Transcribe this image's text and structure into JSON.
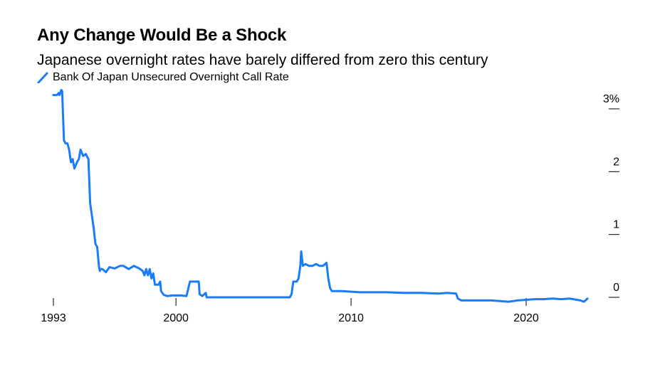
{
  "header": {
    "title": "Any Change Would Be a Shock",
    "subtitle": "Japanese overnight rates have barely differed from zero this century"
  },
  "chart_data": {
    "type": "line",
    "title": "Any Change Would Be a Shock",
    "subtitle": "Japanese overnight rates have barely differed from zero this century",
    "xlabel": "",
    "ylabel": "",
    "xlim": [
      1993,
      2023.7
    ],
    "ylim": [
      0,
      3
    ],
    "y_ticks": [
      0,
      1,
      2,
      3
    ],
    "y_tick_labels": [
      "0",
      "1",
      "2",
      "3%"
    ],
    "x_ticks": [
      1993,
      2000,
      2010,
      2020
    ],
    "x_tick_labels": [
      "1993",
      "2000",
      "2010",
      "2020"
    ],
    "grid": false,
    "legend_position": "top-left",
    "color": "#1a7cf7",
    "series": [
      {
        "name": "Bank Of Japan Unsecured Overnight Call Rate",
        "x": [
          1993.0,
          1993.2,
          1993.3,
          1993.35,
          1993.45,
          1993.5,
          1993.6,
          1993.7,
          1993.8,
          1993.9,
          1994.0,
          1994.1,
          1994.2,
          1994.35,
          1994.45,
          1994.55,
          1994.7,
          1994.85,
          1995.0,
          1995.1,
          1995.2,
          1995.3,
          1995.4,
          1995.5,
          1995.6,
          1995.65,
          1995.7,
          1995.8,
          1996.0,
          1996.2,
          1996.5,
          1996.8,
          1997.0,
          1997.3,
          1997.6,
          1997.9,
          1998.1,
          1998.2,
          1998.3,
          1998.4,
          1998.5,
          1998.6,
          1998.7,
          1998.8,
          1998.9,
          1999.0,
          1999.1,
          1999.15,
          1999.3,
          1999.5,
          1999.8,
          2000.0,
          2000.3,
          2000.6,
          2000.8,
          2000.85,
          2001.0,
          2001.3,
          2001.35,
          2001.5,
          2001.7,
          2001.75,
          2002.5,
          2004.0,
          2005.5,
          2006.5,
          2006.6,
          2006.7,
          2006.8,
          2006.9,
          2007.0,
          2007.1,
          2007.15,
          2007.25,
          2007.4,
          2007.6,
          2007.8,
          2008.0,
          2008.2,
          2008.4,
          2008.6,
          2008.7,
          2008.8,
          2008.9,
          2009.0,
          2009.5,
          2010.0,
          2010.5,
          2011.0,
          2012.0,
          2013.0,
          2014.0,
          2015.0,
          2015.5,
          2016.0,
          2016.1,
          2016.3,
          2016.5,
          2017.0,
          2017.5,
          2018.0,
          2018.5,
          2019.0,
          2019.5,
          2020.0,
          2020.5,
          2021.0,
          2021.5,
          2022.0,
          2022.5,
          2022.9,
          2023.1,
          2023.3,
          2023.5
        ],
        "y": [
          3.22,
          3.22,
          3.25,
          3.22,
          3.3,
          3.28,
          2.5,
          2.45,
          2.45,
          2.35,
          2.15,
          2.2,
          2.05,
          2.15,
          2.2,
          2.35,
          2.25,
          2.28,
          2.2,
          1.5,
          1.3,
          1.1,
          0.85,
          0.8,
          0.5,
          0.42,
          0.45,
          0.45,
          0.4,
          0.48,
          0.46,
          0.5,
          0.5,
          0.45,
          0.5,
          0.46,
          0.42,
          0.35,
          0.45,
          0.35,
          0.45,
          0.3,
          0.38,
          0.2,
          0.2,
          0.2,
          0.25,
          0.1,
          0.04,
          0.02,
          0.03,
          0.03,
          0.03,
          0.02,
          0.25,
          0.25,
          0.25,
          0.25,
          0.05,
          0.02,
          0.07,
          0.0,
          0.0,
          0.0,
          0.0,
          0.0,
          0.05,
          0.25,
          0.25,
          0.25,
          0.3,
          0.5,
          0.73,
          0.5,
          0.53,
          0.5,
          0.5,
          0.53,
          0.5,
          0.5,
          0.55,
          0.3,
          0.15,
          0.1,
          0.1,
          0.1,
          0.09,
          0.08,
          0.08,
          0.08,
          0.07,
          0.07,
          0.06,
          0.07,
          0.06,
          -0.02,
          -0.05,
          -0.05,
          -0.05,
          -0.05,
          -0.05,
          -0.06,
          -0.07,
          -0.05,
          -0.04,
          -0.03,
          -0.03,
          -0.02,
          -0.03,
          -0.02,
          -0.04,
          -0.05,
          -0.07,
          -0.02
        ]
      }
    ]
  }
}
